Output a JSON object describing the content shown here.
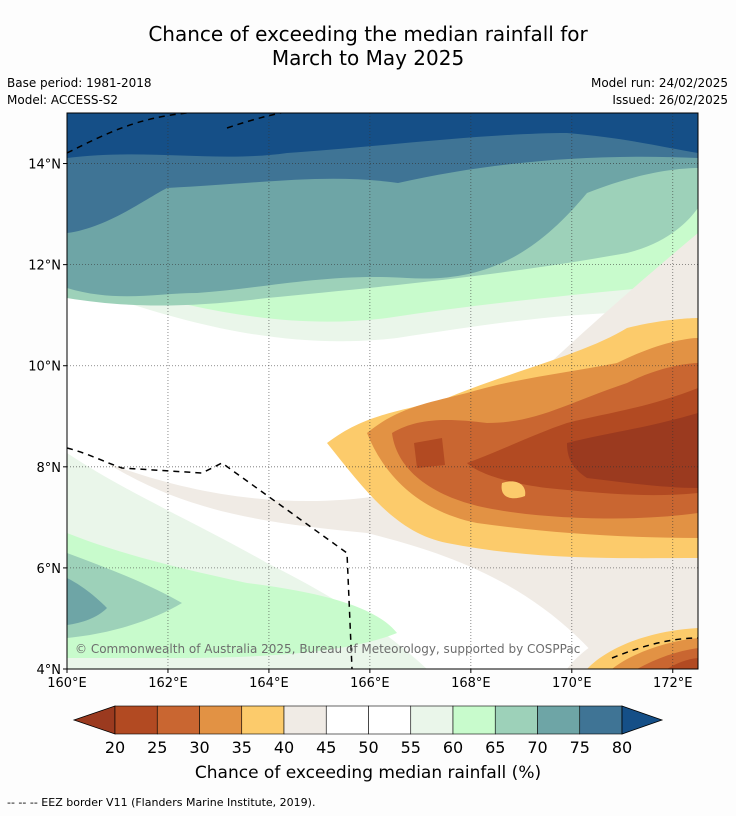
{
  "header": {
    "title_line1": "Chance of exceeding the median rainfall for",
    "title_line2": "March to May 2025",
    "base_period": "Base period: 1981-2018",
    "model": "Model: ACCESS-S2",
    "model_run": "Model run: 24/02/2025",
    "issued": "Issued: 26/02/2025"
  },
  "copyright": "© Commonwealth of Australia 2025, Bureau of Meteorology, supported by COSPPac",
  "footer": "--  --  -- EEZ border V11 (Flanders Marine Institute, 2019).",
  "chart_data": {
    "type": "heatmap",
    "title": "Chance of exceeding the median rainfall for March to May 2025",
    "x_ticks": [
      "160°E",
      "162°E",
      "164°E",
      "166°E",
      "168°E",
      "170°E",
      "172°E"
    ],
    "y_ticks": [
      "4°N",
      "6°N",
      "8°N",
      "10°N",
      "12°N",
      "14°N"
    ],
    "xlim": [
      160,
      172.5
    ],
    "ylim": [
      4,
      15
    ],
    "grid": true,
    "colorbar": {
      "label": "Chance of exceeding median rainfall (%)",
      "ticks": [
        "20",
        "25",
        "30",
        "35",
        "40",
        "45",
        "50",
        "55",
        "60",
        "65",
        "70",
        "75",
        "80"
      ],
      "bins": [
        {
          "range": "<20",
          "color": "#9b3a1f"
        },
        {
          "range": "20-25",
          "color": "#b24a22"
        },
        {
          "range": "25-30",
          "color": "#c96631"
        },
        {
          "range": "30-35",
          "color": "#e29244"
        },
        {
          "range": "35-40",
          "color": "#fccb6b"
        },
        {
          "range": "40-45",
          "color": "#f0ebe5"
        },
        {
          "range": "45-50",
          "color": "#ffffff"
        },
        {
          "range": "50-55",
          "color": "#ffffff"
        },
        {
          "range": "55-60",
          "color": "#eaf6ea"
        },
        {
          "range": "60-65",
          "color": "#c8fbcc"
        },
        {
          "range": "65-70",
          "color": "#9dd1b9"
        },
        {
          "range": "70-75",
          "color": "#6ea5a6"
        },
        {
          "range": "75-80",
          "color": "#3f7495"
        },
        {
          "range": ">80",
          "color": "#154f87"
        }
      ]
    },
    "regions": [
      {
        "range": "75-80",
        "note": "northern band 13.5–15°N"
      },
      {
        "range": ">80",
        "note": "northern edge near 15°N"
      },
      {
        "range": "70-75",
        "note": "12–14°N band"
      },
      {
        "range": "65-70",
        "note": "11–13°N band and SW corner near 4.5–6°N, 160–162°E"
      },
      {
        "range": "60-65",
        "note": "10.5–12°N band and 4–5.5°N, 160–166°E"
      },
      {
        "range": "40-45",
        "note": "6–10°N tongue extending west"
      },
      {
        "range": "35-40",
        "note": "core region 6–10°N, 165–172.5°E"
      },
      {
        "range": "30-35",
        "note": "inner core 7–10°N, 166–172.5°E"
      },
      {
        "range": "25-30",
        "note": "central core 7–9.5°N, 167–172.5°E"
      },
      {
        "range": "20-25",
        "note": "innermost core 7.5–9°N, 169–172.5°E"
      },
      {
        "range": "<20",
        "note": "small patches near 8°N, 172°E"
      }
    ]
  }
}
